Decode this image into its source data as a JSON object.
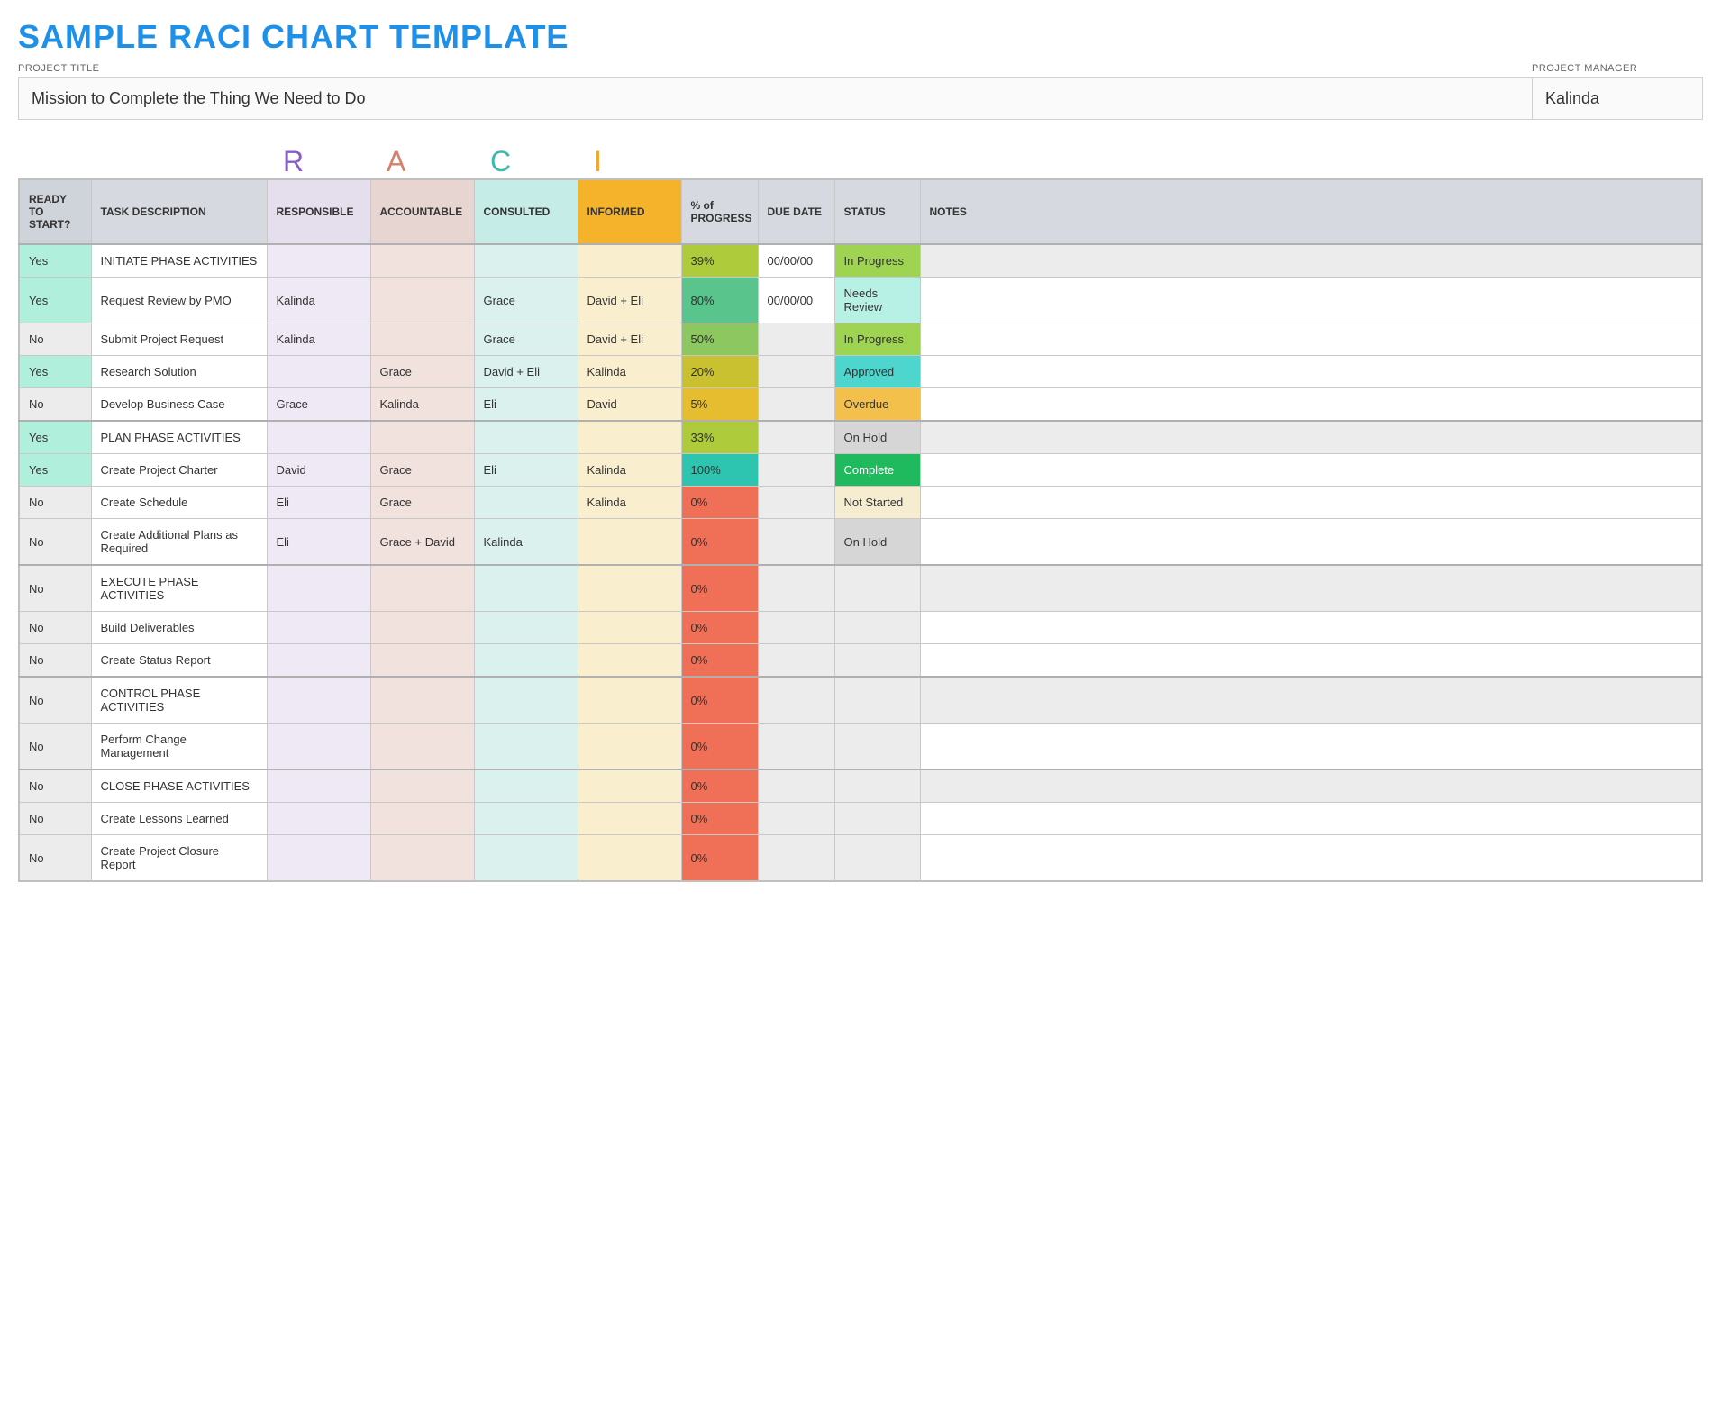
{
  "title": "SAMPLE RACI CHART TEMPLATE",
  "title_color": "#1e90e8",
  "meta": {
    "project_title_label": "PROJECT TITLE",
    "project_title": "Mission to Complete the Thing We Need to Do",
    "project_manager_label": "PROJECT MANAGER",
    "project_manager": "Kalinda"
  },
  "legend": {
    "R": {
      "letter": "R",
      "color": "#8a5cc9"
    },
    "A": {
      "letter": "A",
      "color": "#d4816e"
    },
    "C": {
      "letter": "C",
      "color": "#3fb9ad"
    },
    "I": {
      "letter": "I",
      "color": "#f2a729"
    }
  },
  "columns": {
    "ready": "READY TO START?",
    "task": "TASK DESCRIPTION",
    "responsible": "RESPONSIBLE",
    "accountable": "ACCOUNTABLE",
    "consulted": "CONSULTED",
    "informed": "INFORMED",
    "progress": "% of PROGRESS",
    "due": "DUE DATE",
    "status": "STATUS",
    "notes": "NOTES"
  },
  "header_colors": {
    "ready": "#cfd3da",
    "default": "#d6dae0",
    "responsible": "#e4deed",
    "accountable": "#e7d5d1",
    "consulted": "#c6ece7",
    "informed": "#f4b32a"
  },
  "cell_bg": {
    "responsible": "#efe9f5",
    "accountable": "#f1e2de",
    "consulted": "#daf1ee",
    "informed": "#f9efcf",
    "ready_yes": "#b0efdc",
    "ready_no": "#ececec",
    "due_default": "#ffffff",
    "notes_phase": "#ececec",
    "notes_normal": "#ffffff"
  },
  "progress_colors": {
    "39": "#aecb3c",
    "80": "#59c48b",
    "50": "#8cc760",
    "20": "#c9c12f",
    "5": "#e6bd2f",
    "33": "#aecb3c",
    "100": "#2dc5b0",
    "0": "#ef6f57"
  },
  "status_colors": {
    "In Progress": "#9fd452",
    "Needs Review": "#b7f0e4",
    "Approved": "#4dd6cd",
    "Overdue": "#f3c14b",
    "On Hold": "#d6d6d6",
    "Complete": "#1fba5d",
    "Not Started": "#f6edd0",
    "": "#ececec"
  },
  "rows": [
    {
      "section_start": true,
      "phase": true,
      "ready": "Yes",
      "task": "INITIATE PHASE ACTIVITIES",
      "responsible": "",
      "accountable": "",
      "consulted": "",
      "informed": "",
      "progress": "39%",
      "progress_key": "39",
      "due": "00/00/00",
      "status": "In Progress",
      "notes": ""
    },
    {
      "ready": "Yes",
      "task": "Request Review by PMO",
      "responsible": "Kalinda",
      "accountable": "",
      "consulted": "Grace",
      "informed": "David + Eli",
      "progress": "80%",
      "progress_key": "80",
      "due": "00/00/00",
      "status": "Needs Review",
      "notes": ""
    },
    {
      "ready": "No",
      "task": "Submit Project Request",
      "responsible": "Kalinda",
      "accountable": "",
      "consulted": "Grace",
      "informed": "David + Eli",
      "progress": "50%",
      "progress_key": "50",
      "due": "",
      "status": "In Progress",
      "notes": ""
    },
    {
      "ready": "Yes",
      "task": "Research Solution",
      "responsible": "",
      "accountable": "Grace",
      "consulted": "David + Eli",
      "informed": "Kalinda",
      "progress": "20%",
      "progress_key": "20",
      "due": "",
      "status": "Approved",
      "notes": ""
    },
    {
      "ready": "No",
      "task": "Develop Business Case",
      "responsible": "Grace",
      "accountable": "Kalinda",
      "consulted": "Eli",
      "informed": "David",
      "progress": "5%",
      "progress_key": "5",
      "due": "",
      "status": "Overdue",
      "notes": ""
    },
    {
      "section_start": true,
      "phase": true,
      "ready": "Yes",
      "task": "PLAN PHASE ACTIVITIES",
      "responsible": "",
      "accountable": "",
      "consulted": "",
      "informed": "",
      "progress": "33%",
      "progress_key": "33",
      "due": "",
      "status": "On Hold",
      "notes": ""
    },
    {
      "ready": "Yes",
      "task": "Create Project Charter",
      "responsible": "David",
      "accountable": "Grace",
      "consulted": "Eli",
      "informed": "Kalinda",
      "progress": "100%",
      "progress_key": "100",
      "due": "",
      "status": "Complete",
      "notes": ""
    },
    {
      "ready": "No",
      "task": "Create Schedule",
      "responsible": "Eli",
      "accountable": "Grace",
      "consulted": "",
      "informed": "Kalinda",
      "progress": "0%",
      "progress_key": "0",
      "due": "",
      "status": "Not Started",
      "notes": ""
    },
    {
      "ready": "No",
      "task": "Create Additional Plans as Required",
      "responsible": "Eli",
      "accountable": "Grace + David",
      "consulted": "Kalinda",
      "informed": "",
      "progress": "0%",
      "progress_key": "0",
      "due": "",
      "status": "On Hold",
      "notes": ""
    },
    {
      "section_start": true,
      "phase": true,
      "ready": "No",
      "task": "EXECUTE PHASE ACTIVITIES",
      "responsible": "",
      "accountable": "",
      "consulted": "",
      "informed": "",
      "progress": "0%",
      "progress_key": "0",
      "due": "",
      "status": "",
      "notes": ""
    },
    {
      "ready": "No",
      "task": "Build Deliverables",
      "responsible": "",
      "accountable": "",
      "consulted": "",
      "informed": "",
      "progress": "0%",
      "progress_key": "0",
      "due": "",
      "status": "",
      "notes": ""
    },
    {
      "ready": "No",
      "task": "Create Status Report",
      "responsible": "",
      "accountable": "",
      "consulted": "",
      "informed": "",
      "progress": "0%",
      "progress_key": "0",
      "due": "",
      "status": "",
      "notes": ""
    },
    {
      "section_start": true,
      "phase": true,
      "ready": "No",
      "task": "CONTROL PHASE ACTIVITIES",
      "responsible": "",
      "accountable": "",
      "consulted": "",
      "informed": "",
      "progress": "0%",
      "progress_key": "0",
      "due": "",
      "status": "",
      "notes": ""
    },
    {
      "ready": "No",
      "task": "Perform Change Management",
      "responsible": "",
      "accountable": "",
      "consulted": "",
      "informed": "",
      "progress": "0%",
      "progress_key": "0",
      "due": "",
      "status": "",
      "notes": ""
    },
    {
      "section_start": true,
      "phase": true,
      "ready": "No",
      "task": "CLOSE PHASE ACTIVITIES",
      "responsible": "",
      "accountable": "",
      "consulted": "",
      "informed": "",
      "progress": "0%",
      "progress_key": "0",
      "due": "",
      "status": "",
      "notes": ""
    },
    {
      "ready": "No",
      "task": "Create Lessons Learned",
      "responsible": "",
      "accountable": "",
      "consulted": "",
      "informed": "",
      "progress": "0%",
      "progress_key": "0",
      "due": "",
      "status": "",
      "notes": ""
    },
    {
      "ready": "No",
      "task": "Create Project Closure Report",
      "responsible": "",
      "accountable": "",
      "consulted": "",
      "informed": "",
      "progress": "0%",
      "progress_key": "0",
      "due": "",
      "status": "",
      "notes": ""
    }
  ]
}
